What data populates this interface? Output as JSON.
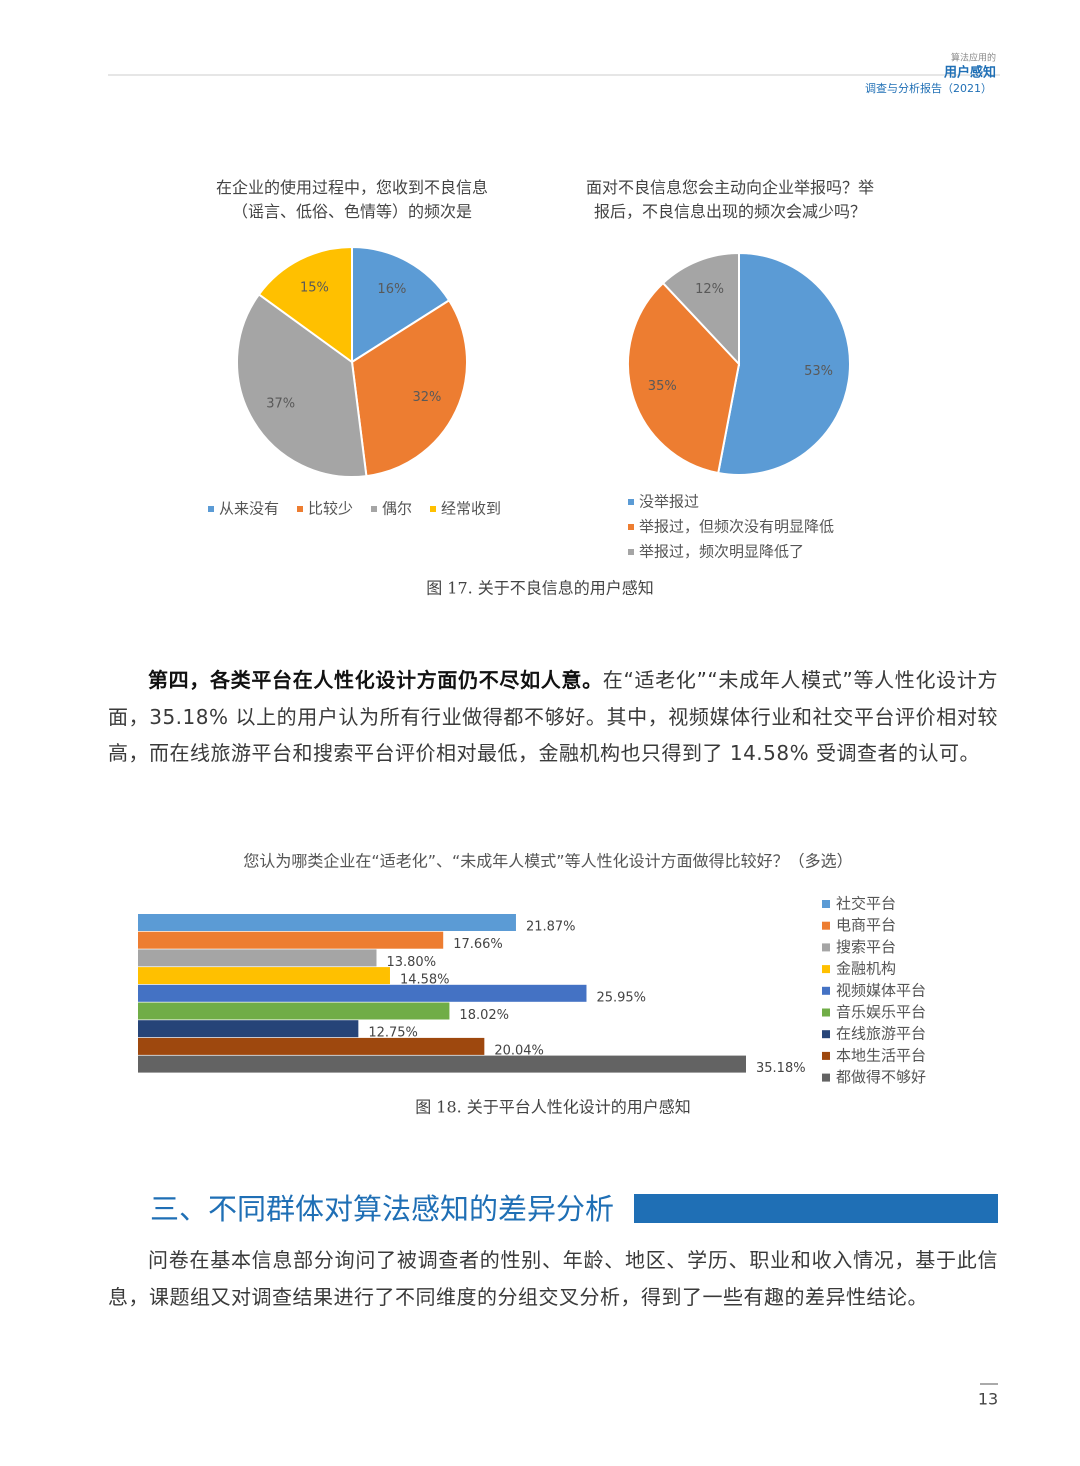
{
  "header": {
    "small": "算法应用的",
    "title": "用户感知",
    "subtitle": "调查与分析报告（2021）"
  },
  "chart_data": [
    {
      "type": "pie",
      "title": "在企业的使用过程中，您收到不良信息\n（谣言、低俗、色情等）的频次是",
      "categories": [
        "从来没有",
        "比较少",
        "偶尔",
        "经常收到"
      ],
      "values": [
        16,
        32,
        37,
        15
      ],
      "value_labels": [
        "16%",
        "32%",
        "37%",
        "15%"
      ],
      "colors": [
        "#5b9bd5",
        "#ed7d31",
        "#a5a5a5",
        "#ffc000"
      ],
      "legend": "bottom"
    },
    {
      "type": "pie",
      "title": "面对不良信息您会主动向企业举报吗？举\n报后，不良信息出现的频次会减少吗？",
      "categories": [
        "没举报过",
        "举报过，但频次没有明显降低",
        "举报过，频次明显降低了"
      ],
      "values": [
        53,
        35,
        12
      ],
      "value_labels": [
        "53%",
        "35%",
        "12%"
      ],
      "colors": [
        "#5b9bd5",
        "#ed7d31",
        "#a5a5a5"
      ],
      "legend": "bottom"
    },
    {
      "type": "hbar",
      "title": "您认为哪类企业在“适老化”、“未成年人模式”等人性化设计方面做得比较好？（多选）",
      "categories": [
        "社交平台",
        "电商平台",
        "搜索平台",
        "金融机构",
        "视频媒体平台",
        "音乐娱乐平台",
        "在线旅游平台",
        "本地生活平台",
        "都做得不够好"
      ],
      "values": [
        21.87,
        17.66,
        13.8,
        14.58,
        25.95,
        18.02,
        12.75,
        20.04,
        35.18
      ],
      "value_labels": [
        "21.87%",
        "17.66%",
        "13.80%",
        "14.58%",
        "25.95%",
        "18.02%",
        "12.75%",
        "20.04%",
        "35.18%"
      ],
      "colors": [
        "#5b9bd5",
        "#ed7d31",
        "#a5a5a5",
        "#ffc000",
        "#4472c4",
        "#70ad47",
        "#264478",
        "#9e480e",
        "#636363"
      ],
      "legend": "right"
    }
  ],
  "captions": [
    "图 17. 关于不良信息的用户感知",
    "图 18. 关于平台人性化设计的用户感知"
  ],
  "paragraphs": [
    {
      "bold": "第四，各类平台在人性化设计方面仍不尽如人意。",
      "text": "在“适老化”“未成年人模式”等人性化设计方面，35.18% 以上的用户认为所有行业做得都不够好。其中，视频媒体行业和社交平台评价相对较高，而在线旅游平台和搜索平台评价相对最低，金融机构也只得到了 14.58% 受调查者的认可。"
    },
    {
      "text": "问卷在基本信息部分询问了被调查者的性别、年龄、地区、学历、职业和收入情况，基于此信息，课题组又对调查结果进行了不同维度的分组交叉分析，得到了一些有趣的差异性结论。"
    }
  ],
  "section_title": "三、不同群体对算法感知的差异分析",
  "page_number": "13"
}
